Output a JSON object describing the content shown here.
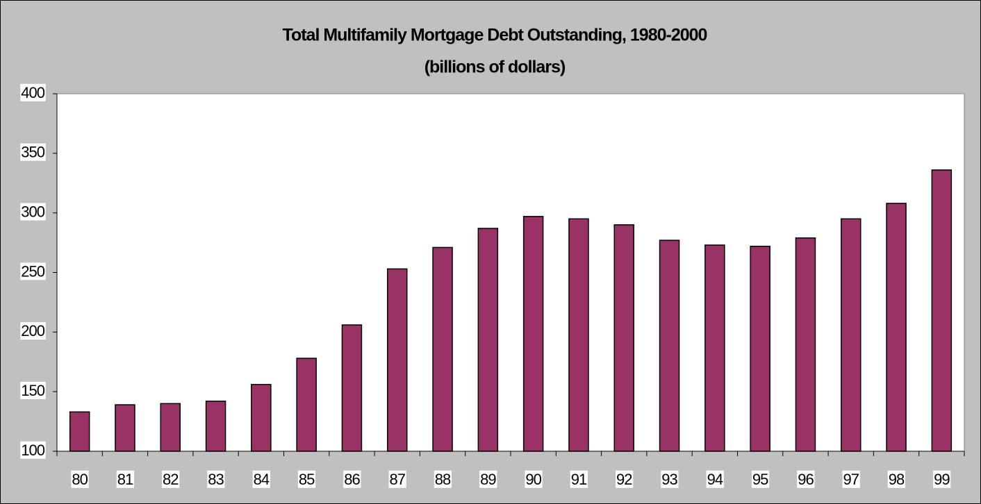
{
  "chart_data": {
    "type": "bar",
    "title": "Total Multifamily Mortgage Debt Outstanding, 1980-2000",
    "subtitle": "(billions of dollars)",
    "categories": [
      "80",
      "81",
      "82",
      "83",
      "84",
      "85",
      "86",
      "87",
      "88",
      "89",
      "90",
      "91",
      "92",
      "93",
      "94",
      "95",
      "96",
      "97",
      "98",
      "99"
    ],
    "values": [
      133,
      139,
      140,
      142,
      156,
      178,
      206,
      253,
      271,
      287,
      297,
      295,
      290,
      277,
      273,
      272,
      279,
      295,
      308,
      336
    ],
    "color": "#993366",
    "ylim": [
      100,
      400
    ],
    "yticks": [
      100,
      150,
      200,
      250,
      300,
      350,
      400
    ],
    "grid": false
  }
}
